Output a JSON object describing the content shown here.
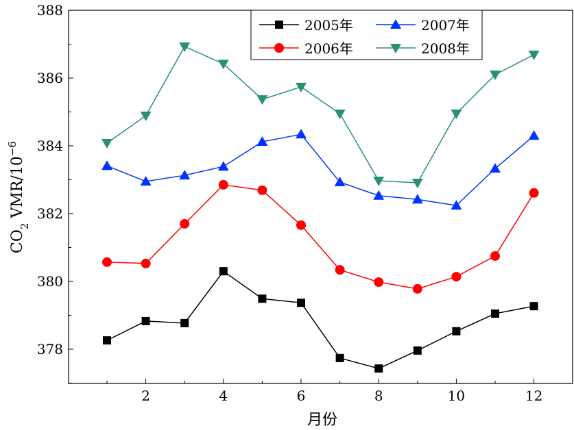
{
  "chart_data": {
    "type": "line",
    "title": "",
    "xlabel": "月份",
    "ylabel": "CO2 VMR/10-6",
    "ylabel_parts": {
      "main": "CO",
      "sub": "2",
      "rest": " VMR/10",
      "sup": "−6"
    },
    "xlim": [
      0,
      13
    ],
    "ylim": [
      377,
      388
    ],
    "xticks": [
      2,
      4,
      6,
      8,
      10,
      12
    ],
    "yticks": [
      378,
      380,
      382,
      384,
      386,
      388
    ],
    "grid": false,
    "legend_position": "top-center",
    "x": [
      1,
      2,
      3,
      4,
      5,
      6,
      7,
      8,
      9,
      10,
      11,
      12
    ],
    "series": [
      {
        "name": "2005年",
        "color": "#000000",
        "marker": "square",
        "values": [
          378.26,
          378.83,
          378.77,
          380.3,
          379.49,
          379.37,
          377.74,
          377.43,
          377.96,
          378.53,
          379.05,
          379.27
        ]
      },
      {
        "name": "2006年",
        "color": "#ff0000",
        "marker": "circle",
        "values": [
          380.57,
          380.53,
          381.7,
          382.85,
          382.69,
          381.66,
          380.34,
          379.98,
          379.78,
          380.14,
          380.75,
          382.61
        ]
      },
      {
        "name": "2007年",
        "color": "#0033ff",
        "marker": "triangle-up",
        "values": [
          383.41,
          382.95,
          383.13,
          383.39,
          384.12,
          384.34,
          382.93,
          382.53,
          382.42,
          382.24,
          383.33,
          384.3
        ]
      },
      {
        "name": "2008年",
        "color": "#2a9070",
        "marker": "triangle-down",
        "values": [
          384.08,
          384.89,
          386.93,
          386.42,
          385.37,
          385.74,
          384.95,
          382.97,
          382.91,
          384.95,
          386.1,
          386.69
        ]
      }
    ]
  }
}
